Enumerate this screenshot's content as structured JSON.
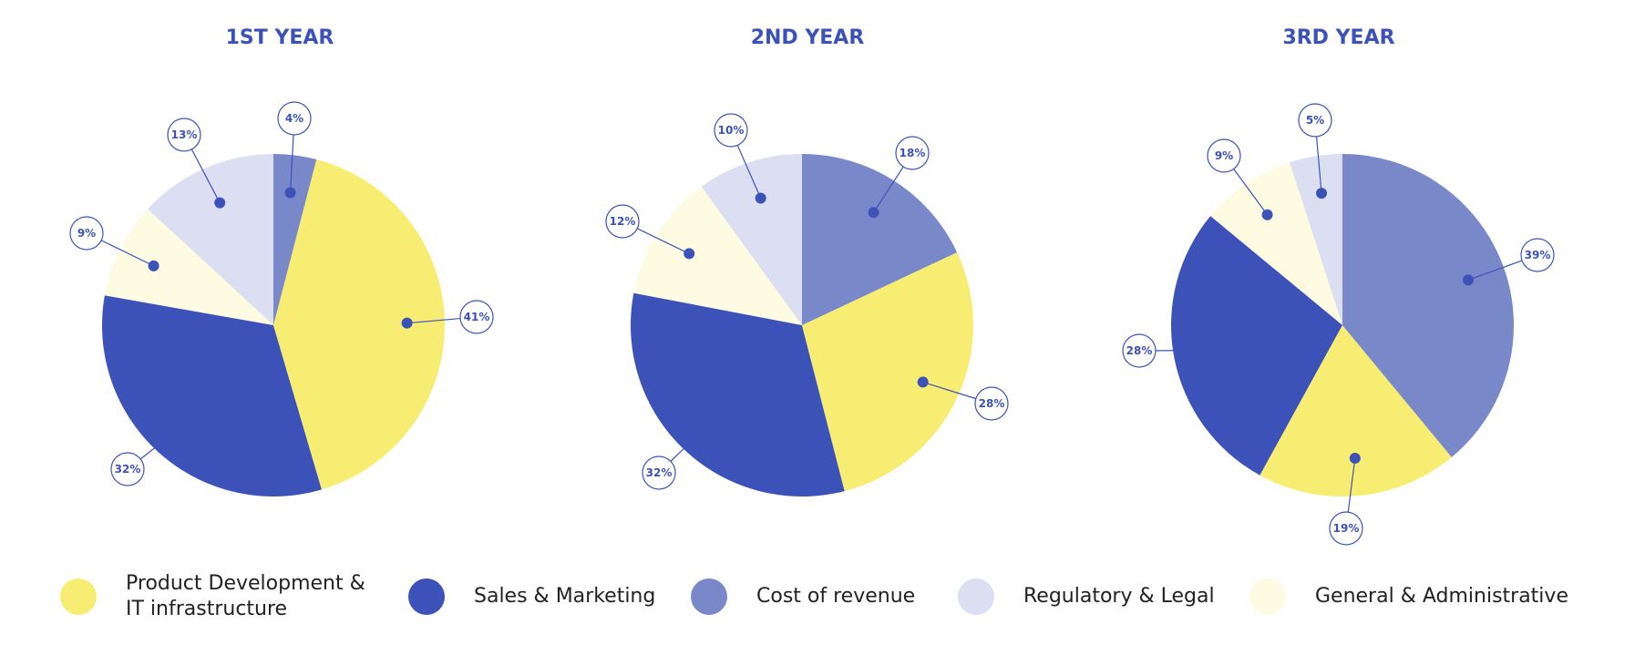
{
  "chart_data": [
    {
      "type": "pie",
      "title": "1ST YEAR",
      "slices": [
        {
          "category": "Cost of revenue",
          "value": 4,
          "label": "4%"
        },
        {
          "category": "Product Development & IT infrastructure",
          "value": 41,
          "label": "41%"
        },
        {
          "category": "Sales & Marketing",
          "value": 32,
          "label": "32%"
        },
        {
          "category": "General & Administrative",
          "value": 9,
          "label": "9%"
        },
        {
          "category": "Regulatory & Legal",
          "value": 13,
          "label": "13%"
        }
      ]
    },
    {
      "type": "pie",
      "title": "2ND YEAR",
      "slices": [
        {
          "category": "Cost of revenue",
          "value": 18,
          "label": "18%"
        },
        {
          "category": "Product Development & IT infrastructure",
          "value": 28,
          "label": "28%"
        },
        {
          "category": "Sales & Marketing",
          "value": 32,
          "label": "32%"
        },
        {
          "category": "General & Administrative",
          "value": 12,
          "label": "12%"
        },
        {
          "category": "Regulatory & Legal",
          "value": 10,
          "label": "10%"
        }
      ]
    },
    {
      "type": "pie",
      "title": "3RD YEAR",
      "slices": [
        {
          "category": "Cost of revenue",
          "value": 39,
          "label": "39%"
        },
        {
          "category": "Product Development & IT infrastructure",
          "value": 19,
          "label": "19%"
        },
        {
          "category": "Sales & Marketing",
          "value": 28,
          "label": "28%"
        },
        {
          "category": "General & Administrative",
          "value": 9,
          "label": "9%"
        },
        {
          "category": "Regulatory & Legal",
          "value": 5,
          "label": "5%"
        }
      ]
    }
  ],
  "legend": {
    "items": [
      {
        "label": "Product Development &\nIT infrastructure",
        "color": "#f7ed72"
      },
      {
        "label": "Sales & Marketing",
        "color": "#3d52b8"
      },
      {
        "label": "Cost of revenue",
        "color": "#7988c9"
      },
      {
        "label": "Regulatory & Legal",
        "color": "#dcdff1"
      },
      {
        "label": "General & Administrative",
        "color": "#fdfbe2"
      }
    ]
  },
  "colors": {
    "accent": "#3d52b8",
    "Product Development & IT infrastructure": "#f7ed72",
    "Sales & Marketing": "#3d52b8",
    "Cost of revenue": "#7988c9",
    "Regulatory & Legal": "#dcdff1",
    "General & Administrative": "#fdfbe2"
  }
}
